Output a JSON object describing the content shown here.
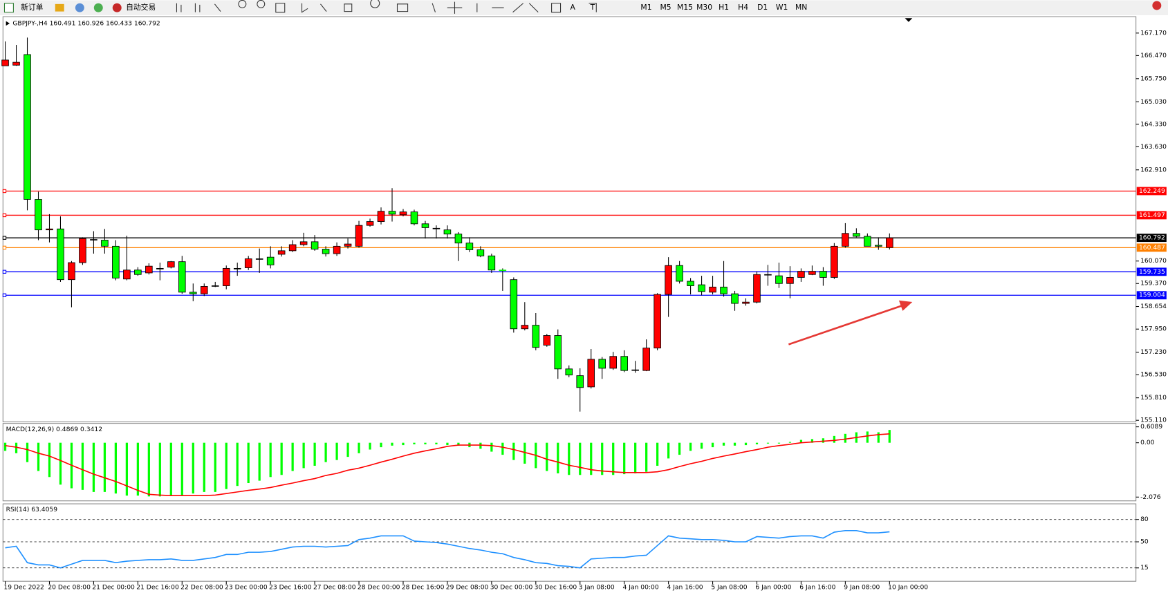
{
  "toolbar": {
    "new_order": "新订单",
    "auto_trading": "自动交易",
    "periods": [
      "M1",
      "M5",
      "M15",
      "M30",
      "H1",
      "H4",
      "D1",
      "W1",
      "MN"
    ],
    "tools": [
      "A",
      "T"
    ]
  },
  "chart_data": [
    {
      "type": "candlestick",
      "title": "GBPJPY-,H4  160.491 160.926 160.433 160.792",
      "categories": [
        "19 Dec 2022",
        null,
        null,
        null,
        "20 Dec 08:00",
        null,
        null,
        null,
        "21 Dec 00:00",
        null,
        null,
        null,
        "21 Dec 16:00",
        null,
        null,
        null,
        "22 Dec 08:00",
        null,
        null,
        null,
        "23 Dec 00:00",
        null,
        null,
        null,
        "23 Dec 16:00",
        null,
        null,
        null,
        "27 Dec 08:00",
        null,
        null,
        null,
        "28 Dec 00:00",
        null,
        null,
        null,
        "28 Dec 16:00",
        null,
        null,
        null,
        "29 Dec 08:00",
        null,
        null,
        null,
        "30 Dec 00:00",
        null,
        null,
        null,
        "30 Dec 16:00",
        null,
        null,
        null,
        "3 Jan 08:00",
        null,
        null,
        null,
        "4 Jan 00:00",
        null,
        null,
        null,
        "4 Jan 16:00",
        null,
        null,
        null,
        "5 Jan 08:00",
        null,
        null,
        null,
        "6 Jan 00:00",
        null,
        null,
        null,
        "6 Jan 16:00",
        null,
        null,
        null,
        "9 Jan 08:00",
        null,
        null,
        null,
        "10 Jan 00:00"
      ],
      "open": [
        166.15,
        166.17,
        166.5,
        161.99,
        161.04,
        161.07,
        159.49,
        160.02,
        160.74,
        160.72,
        160.53,
        159.51,
        159.79,
        159.7,
        159.84,
        159.88,
        160.05,
        159.1,
        159.05,
        159.3,
        159.3,
        159.84,
        159.86,
        160.14,
        160.19,
        160.28,
        160.39,
        160.58,
        160.67,
        160.44,
        160.3,
        160.53,
        160.53,
        161.18,
        161.3,
        161.62,
        161.51,
        161.6,
        161.23,
        161.09,
        161.04,
        160.91,
        160.63,
        160.42,
        160.23,
        159.79,
        159.49,
        157.96,
        158.07,
        157.45,
        157.75,
        156.71,
        156.5,
        156.15,
        157.01,
        156.73,
        157.1,
        156.68,
        156.66,
        157.36,
        159.03,
        159.93,
        159.44,
        159.33,
        159.1,
        159.26,
        159.05,
        158.75,
        158.79,
        159.65,
        159.61,
        159.37,
        159.56,
        159.65,
        159.75,
        159.56,
        160.53,
        160.93,
        160.84,
        160.56,
        160.49
      ],
      "high": [
        166.91,
        166.8,
        167.03,
        162.23,
        161.53,
        161.46,
        160.07,
        160.81,
        161.0,
        161.07,
        160.72,
        160.86,
        159.88,
        160.0,
        160.02,
        160.07,
        160.23,
        159.37,
        159.37,
        159.42,
        159.93,
        160.02,
        160.23,
        160.46,
        160.53,
        160.53,
        160.72,
        160.95,
        160.88,
        160.53,
        160.65,
        160.77,
        161.32,
        161.39,
        161.74,
        162.34,
        161.69,
        161.67,
        161.32,
        161.18,
        161.18,
        160.97,
        160.81,
        160.53,
        160.3,
        159.84,
        159.56,
        158.79,
        158.45,
        157.8,
        157.94,
        156.82,
        156.73,
        157.33,
        157.08,
        157.24,
        157.29,
        156.96,
        157.63,
        159.07,
        160.19,
        160.07,
        159.54,
        159.61,
        159.61,
        160.07,
        159.14,
        158.91,
        159.75,
        159.95,
        160.02,
        159.91,
        159.84,
        159.93,
        159.88,
        160.63,
        161.25,
        161.09,
        160.93,
        160.81,
        160.93
      ],
      "low": [
        166.15,
        166.15,
        161.65,
        160.72,
        160.65,
        159.42,
        158.63,
        159.95,
        160.3,
        160.3,
        159.47,
        159.47,
        159.61,
        159.65,
        159.47,
        159.84,
        159.05,
        158.82,
        158.98,
        159.26,
        159.19,
        159.61,
        159.79,
        159.7,
        159.84,
        160.21,
        160.35,
        160.53,
        160.39,
        160.21,
        160.23,
        160.46,
        160.49,
        161.14,
        161.21,
        161.3,
        161.46,
        161.18,
        160.77,
        160.77,
        160.77,
        160.07,
        160.35,
        160.19,
        159.7,
        159.14,
        157.84,
        157.91,
        157.29,
        157.4,
        156.4,
        156.45,
        155.38,
        156.1,
        156.4,
        156.68,
        156.61,
        156.59,
        156.64,
        157.29,
        158.33,
        159.37,
        159.03,
        159.0,
        159.03,
        158.96,
        158.52,
        158.68,
        158.75,
        159.3,
        159.23,
        158.91,
        159.42,
        159.63,
        159.3,
        159.51,
        160.49,
        160.81,
        160.53,
        160.42,
        160.43
      ],
      "close": [
        166.33,
        166.26,
        161.99,
        161.04,
        161.07,
        159.49,
        160.02,
        160.77,
        160.74,
        160.53,
        159.54,
        159.79,
        159.65,
        159.91,
        159.84,
        160.05,
        159.1,
        159.05,
        159.28,
        159.3,
        159.84,
        159.84,
        160.14,
        160.14,
        159.95,
        160.39,
        160.58,
        160.67,
        160.44,
        160.3,
        160.53,
        160.6,
        161.18,
        161.3,
        161.62,
        161.53,
        161.6,
        161.23,
        161.11,
        161.09,
        160.91,
        160.63,
        160.42,
        160.23,
        159.79,
        159.77,
        157.96,
        158.07,
        157.38,
        157.75,
        156.71,
        156.52,
        156.13,
        157.01,
        156.73,
        157.1,
        156.66,
        156.68,
        157.36,
        159.03,
        159.93,
        159.44,
        159.3,
        159.12,
        159.26,
        159.05,
        158.75,
        158.79,
        159.65,
        159.65,
        159.37,
        159.56,
        159.75,
        159.75,
        159.56,
        160.53,
        160.93,
        160.84,
        160.53,
        160.53,
        160.79
      ],
      "up_color": "#ff0000",
      "down_color": "#00ff00",
      "ylim": [
        155.06,
        167.68
      ],
      "yticks": [
        {
          "value": 167.17,
          "label": "167.170"
        },
        {
          "value": 166.47,
          "label": "166.470"
        },
        {
          "value": 165.75,
          "label": "165.750"
        },
        {
          "value": 165.03,
          "label": "165.030"
        },
        {
          "value": 164.33,
          "label": "164.330"
        },
        {
          "value": 163.63,
          "label": "163.630"
        },
        {
          "value": 162.91,
          "label": "162.910"
        },
        {
          "value": 160.07,
          "label": "160.070"
        },
        {
          "value": 159.37,
          "label": "159.370"
        },
        {
          "value": 158.654,
          "label": "158.654"
        },
        {
          "value": 157.95,
          "label": "157.950"
        },
        {
          "value": 157.23,
          "label": "157.230"
        },
        {
          "value": 156.53,
          "label": "156.530"
        },
        {
          "value": 155.81,
          "label": "155.810"
        },
        {
          "value": 155.11,
          "label": "155.110"
        }
      ],
      "levels": [
        {
          "value": 162.249,
          "color": "#ff0000"
        },
        {
          "value": 161.497,
          "color": "#ff0000"
        },
        {
          "value": 160.792,
          "color": "#000000"
        },
        {
          "value": 160.487,
          "color": "#ff8000"
        },
        {
          "value": 159.735,
          "color": "#0000ff"
        },
        {
          "value": 159.004,
          "color": "#0000ff"
        }
      ]
    },
    {
      "type": "macd",
      "title": "MACD(12,26,9) 0.4869 0.3412",
      "histogram": [
        -0.31,
        -0.4,
        -0.74,
        -1.08,
        -1.31,
        -1.6,
        -1.74,
        -1.8,
        -1.88,
        -1.88,
        -1.94,
        -2.02,
        -2.02,
        -2.05,
        -2.05,
        -2.0,
        -2.0,
        -1.94,
        -1.88,
        -1.88,
        -1.77,
        -1.65,
        -1.54,
        -1.45,
        -1.31,
        -1.23,
        -1.08,
        -0.97,
        -0.88,
        -0.74,
        -0.66,
        -0.54,
        -0.4,
        -0.26,
        -0.17,
        -0.11,
        -0.09,
        -0.06,
        -0.06,
        -0.06,
        -0.09,
        -0.11,
        -0.17,
        -0.23,
        -0.34,
        -0.46,
        -0.66,
        -0.8,
        -0.97,
        -1.08,
        -1.17,
        -1.23,
        -1.23,
        -1.23,
        -1.23,
        -1.23,
        -1.2,
        -1.17,
        -1.11,
        -0.88,
        -0.6,
        -0.46,
        -0.31,
        -0.23,
        -0.17,
        -0.11,
        -0.11,
        -0.09,
        -0.06,
        -0.03,
        0,
        0.03,
        0.11,
        0.14,
        0.17,
        0.26,
        0.34,
        0.4,
        0.43,
        0.4,
        0.49
      ],
      "signal": [
        -0.11,
        -0.17,
        -0.26,
        -0.4,
        -0.51,
        -0.68,
        -0.86,
        -1.03,
        -1.2,
        -1.34,
        -1.48,
        -1.65,
        -1.82,
        -1.97,
        -2.0,
        -2.02,
        -2.02,
        -2.02,
        -2.02,
        -2.0,
        -1.94,
        -1.88,
        -1.82,
        -1.77,
        -1.71,
        -1.62,
        -1.54,
        -1.45,
        -1.37,
        -1.25,
        -1.17,
        -1.05,
        -0.97,
        -0.86,
        -0.74,
        -0.63,
        -0.51,
        -0.4,
        -0.31,
        -0.23,
        -0.14,
        -0.09,
        -0.09,
        -0.09,
        -0.11,
        -0.17,
        -0.26,
        -0.37,
        -0.48,
        -0.63,
        -0.74,
        -0.86,
        -0.94,
        -1.03,
        -1.08,
        -1.11,
        -1.14,
        -1.14,
        -1.14,
        -1.11,
        -1.03,
        -0.91,
        -0.8,
        -0.71,
        -0.6,
        -0.51,
        -0.43,
        -0.34,
        -0.26,
        -0.17,
        -0.11,
        -0.06,
        0,
        0.03,
        0.06,
        0.09,
        0.14,
        0.2,
        0.26,
        0.31,
        0.34
      ],
      "histogram_color": "#00ff00",
      "signal_color": "#ff0000",
      "ylim": [
        -2.22,
        0.74
      ],
      "yticks": [
        0.6089,
        {
          "value": 0,
          "label": "0.00"
        },
        -2.076
      ]
    },
    {
      "type": "line",
      "title": "RSI(14) 63.4059",
      "values": [
        42,
        44,
        22,
        19,
        19,
        15,
        20,
        25,
        25,
        25,
        22,
        24,
        25,
        26,
        26,
        27,
        25,
        25,
        27,
        29,
        33,
        33,
        36,
        36,
        37,
        40,
        43,
        44,
        44,
        43,
        44,
        45,
        53,
        55,
        58,
        58,
        58,
        51,
        50,
        49,
        47,
        44,
        41,
        39,
        36,
        34,
        29,
        26,
        22,
        21,
        18,
        17,
        15,
        27,
        28,
        29,
        29,
        31,
        32,
        45,
        58,
        55,
        54,
        53,
        53,
        52,
        50,
        50,
        57,
        56,
        55,
        57,
        58,
        58,
        55,
        63,
        65,
        65,
        62,
        62,
        63.41
      ],
      "color": "#1e90ff",
      "ylim": [
        0,
        100
      ],
      "yticks": [
        15,
        50,
        80
      ]
    }
  ]
}
